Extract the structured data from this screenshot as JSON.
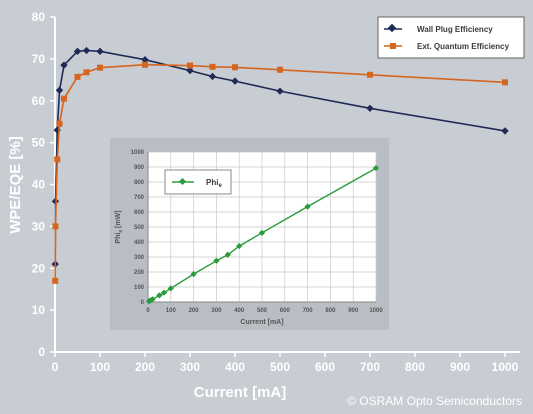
{
  "copyright": "© OSRAM Opto Semiconductors",
  "colors": {
    "background": "#c8cdd3",
    "wpe": "#1f2a55",
    "eqe": "#d4661f",
    "phi": "#2a9a3a",
    "inset_bg": "#ffffff",
    "inset_frame": "#b9bec4"
  },
  "chart_data": [
    {
      "type": "line",
      "xlabel": "Current [mA]",
      "ylabel": "WPE/EQE [%]",
      "xlim": [
        0,
        1000
      ],
      "ylim": [
        0,
        80
      ],
      "xticks": [
        0,
        100,
        200,
        300,
        400,
        500,
        600,
        700,
        800,
        900,
        1000
      ],
      "yticks": [
        0,
        10,
        20,
        30,
        40,
        50,
        60,
        70,
        80
      ],
      "grid": false,
      "legend_position": "top-right",
      "series": [
        {
          "name": "Wall Plug Efficiency",
          "x": [
            0.5,
            1,
            5,
            10,
            20,
            50,
            70,
            100,
            200,
            300,
            350,
            400,
            500,
            700,
            1000
          ],
          "values": [
            21,
            36,
            53,
            62.5,
            68.5,
            71.8,
            72,
            71.8,
            69.8,
            67.2,
            65.8,
            64.7,
            62.3,
            58.2,
            52.8
          ]
        },
        {
          "name": "Ext. Quantum Efficiency",
          "x": [
            0.5,
            1,
            5,
            10,
            20,
            50,
            70,
            100,
            200,
            300,
            350,
            400,
            500,
            700,
            1000
          ],
          "values": [
            17,
            30,
            46,
            54.5,
            60.5,
            65.7,
            66.8,
            67.9,
            68.6,
            68.4,
            68.1,
            68.0,
            67.4,
            66.2,
            64.4
          ]
        }
      ]
    },
    {
      "type": "line",
      "xlabel": "Current [mA]",
      "ylabel": "Phi",
      "ylabel_sub": "e",
      "ylabel_unit": " [mW]",
      "xlim": [
        0,
        1000
      ],
      "ylim": [
        0,
        1000
      ],
      "xticks": [
        0,
        100,
        200,
        300,
        400,
        500,
        600,
        700,
        800,
        900,
        1000
      ],
      "yticks": [
        0,
        100,
        200,
        300,
        400,
        500,
        600,
        700,
        800,
        900,
        1000
      ],
      "grid": true,
      "legend_position": "top-left",
      "series": [
        {
          "name": "Phi",
          "name_sub": "e",
          "x": [
            5,
            10,
            20,
            50,
            70,
            100,
            200,
            300,
            350,
            400,
            500,
            700,
            1000
          ],
          "values": [
            5,
            10,
            18,
            44,
            62,
            91,
            186,
            275,
            315,
            373,
            461,
            636,
            893
          ]
        }
      ]
    }
  ]
}
